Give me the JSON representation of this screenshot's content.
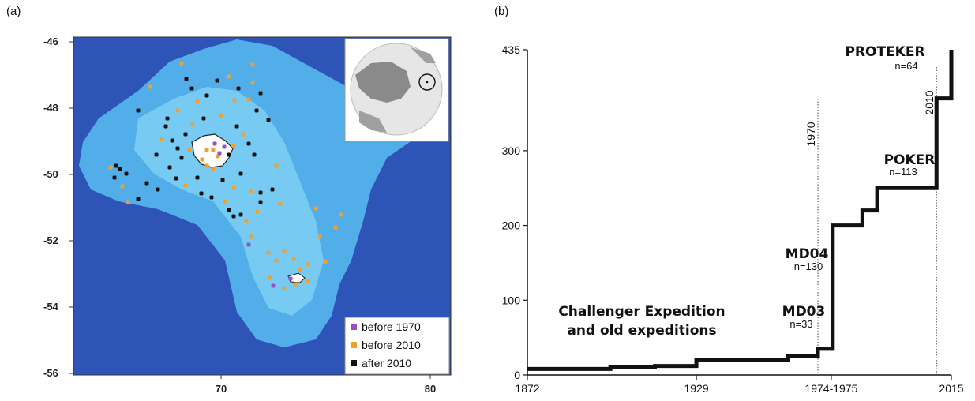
{
  "panel_a": {
    "letter": "(a)",
    "y_ticks": [
      "-46",
      "-48",
      "-50",
      "-52",
      "-54",
      "-56"
    ],
    "x_ticks": [
      "70",
      "80"
    ],
    "legend": [
      {
        "label": "before 1970",
        "color": "#9b4fc4"
      },
      {
        "label": "before 2010",
        "color": "#f0a030"
      },
      {
        "label": "after 2010",
        "color": "#111111"
      }
    ],
    "colors": {
      "deep": "#2e54b8",
      "shelf": "#56b8ee",
      "land": "#ffffff"
    }
  },
  "panel_b": {
    "letter": "(b)",
    "vlines": [
      "1970",
      "2010"
    ],
    "labels": {
      "proteker": "PROTEKER",
      "proteker_n": "n=64",
      "poker": "POKER",
      "poker_n": "n=113",
      "md04": "MD04",
      "md04_n": "n=130",
      "md03": "MD03",
      "md03_n": "n=33",
      "challenger_1": "Challenger Expedition",
      "challenger_2": "and old expeditions"
    }
  },
  "chart_data": {
    "type": "line",
    "title": "",
    "xlabel": "",
    "ylabel": "",
    "x_tick_labels": [
      "1872",
      "1929",
      "1974-1975",
      "2015"
    ],
    "y_tick_labels": [
      "0",
      "100",
      "200",
      "300",
      "435"
    ],
    "ylim": [
      0,
      435
    ],
    "series": [
      {
        "step": [
          [
            1872,
            8
          ],
          [
            1900,
            10
          ],
          [
            1915,
            12
          ],
          [
            1929,
            20
          ],
          [
            1960,
            25
          ],
          [
            1970,
            35
          ],
          [
            1975,
            200
          ],
          [
            1985,
            220
          ],
          [
            1990,
            250
          ],
          [
            2010,
            370
          ],
          [
            2015,
            435
          ]
        ]
      }
    ]
  }
}
